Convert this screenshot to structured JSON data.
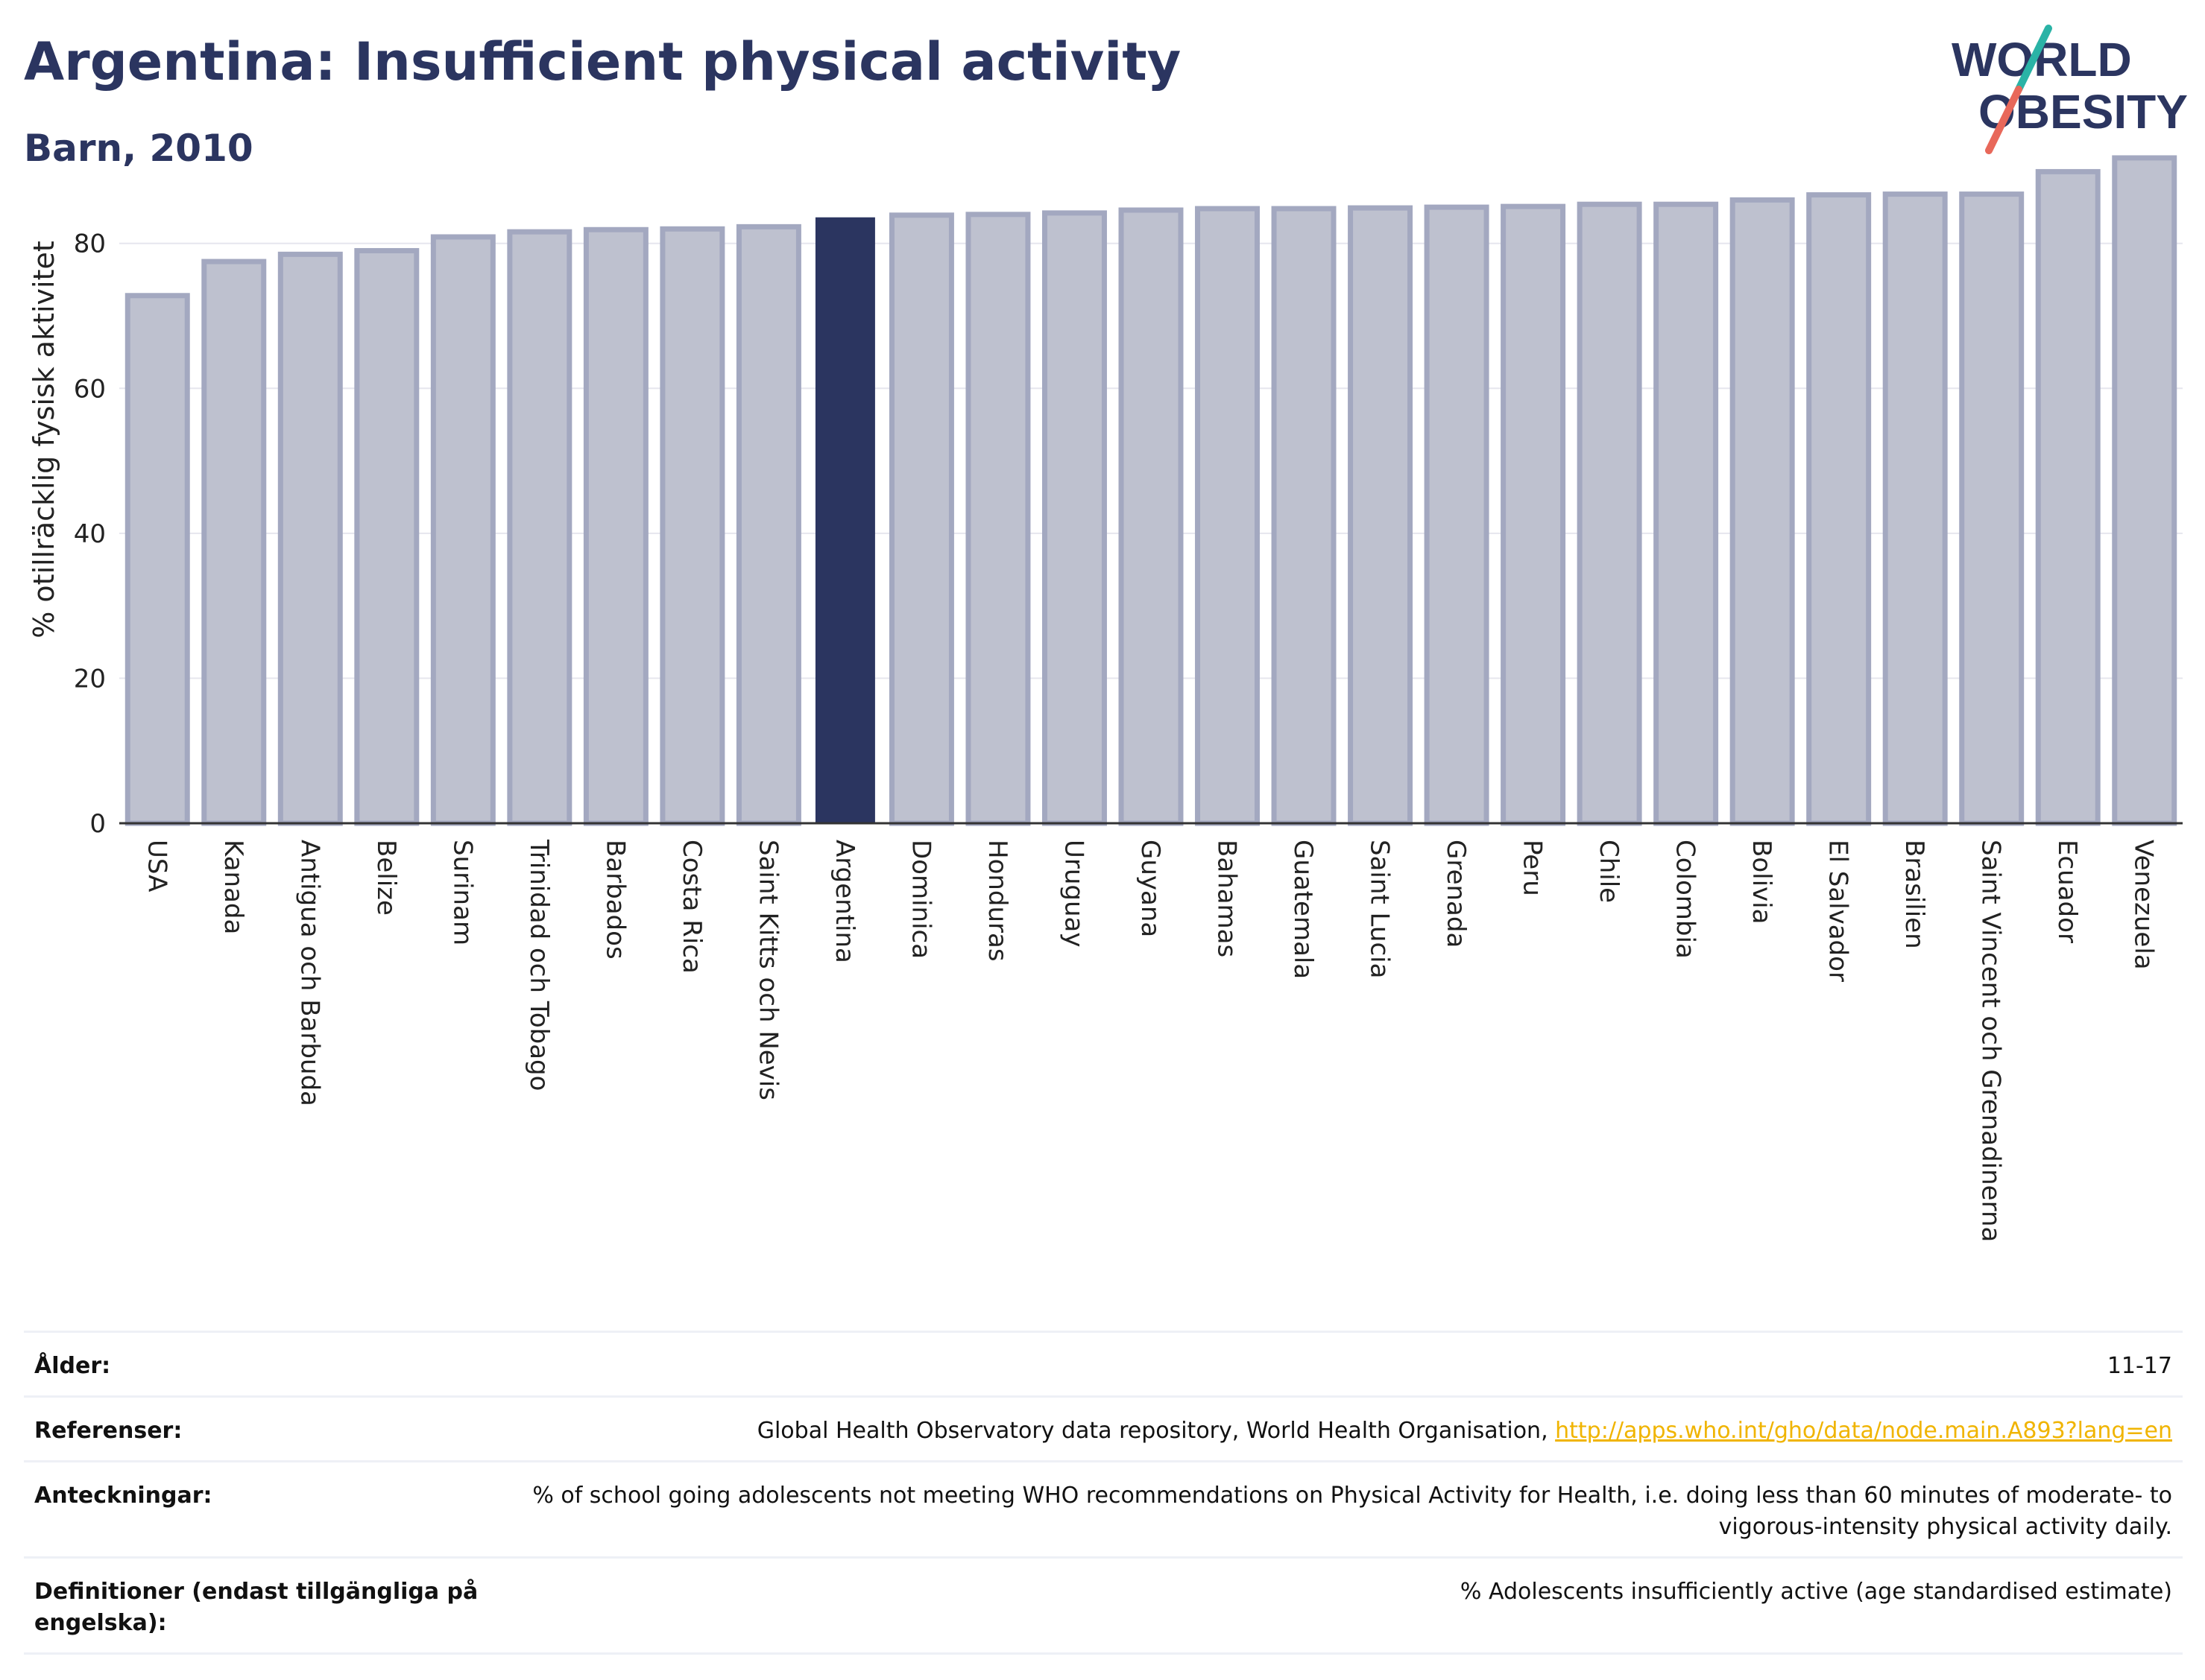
{
  "header": {
    "title": "Argentina: Insufficient physical activity",
    "subtitle": "Barn, 2010"
  },
  "logo": {
    "line1": "WORLD",
    "line2": "OBESITY"
  },
  "colors": {
    "highlight": "#2b3560",
    "bar_fill": "#bec1cf",
    "bar_stroke": "#a3a8c0",
    "grid": "#e6e6ee",
    "logo_teal": "#2ab3a6",
    "logo_coral": "#e8685a"
  },
  "chart_data": {
    "type": "bar",
    "title": "Argentina: Insufficient physical activity",
    "subtitle": "Barn, 2010",
    "xlabel": "",
    "ylabel": "% otillräcklig fysisk aktivitet",
    "ylim": [
      0,
      92
    ],
    "yticks": [
      0,
      20,
      40,
      60,
      80
    ],
    "grid": true,
    "highlight": "Argentina",
    "categories": [
      "USA",
      "Kanada",
      "Antigua och Barbuda",
      "Belize",
      "Surinam",
      "Trinidad och Tobago",
      "Barbados",
      "Costa Rica",
      "Saint Kitts och Nevis",
      "Argentina",
      "Dominica",
      "Honduras",
      "Uruguay",
      "Guyana",
      "Bahamas",
      "Guatemala",
      "Saint Lucia",
      "Grenada",
      "Peru",
      "Chile",
      "Colombia",
      "Bolivia",
      "El Salvador",
      "Brasilien",
      "Saint Vincent och Grenadinerna",
      "Ecuador",
      "Venezuela"
    ],
    "values": [
      72.8,
      77.5,
      78.5,
      79.0,
      80.9,
      81.6,
      81.9,
      82.0,
      82.3,
      83.6,
      83.9,
      84.0,
      84.2,
      84.6,
      84.8,
      84.8,
      84.9,
      85.0,
      85.1,
      85.4,
      85.4,
      86.0,
      86.7,
      86.8,
      86.8,
      89.9,
      91.8
    ]
  },
  "meta": {
    "age_label": "Ålder:",
    "age_value": "11-17",
    "refs_label": "Referenser:",
    "refs_text": "Global Health Observatory data repository, World Health Organisation, ",
    "refs_link": "http://apps.who.int/gho/data/node.main.A893?lang=en",
    "notes_label": "Anteckningar:",
    "notes_text": "% of school going adolescents not meeting WHO recommendations on Physical Activity for Health, i.e. doing less than 60 minutes of moderate- to vigorous-intensity physical activity daily.",
    "defs_label": "Definitioner (endast tillgängliga på engelska):",
    "defs_text": "% Adolescents insufficiently active (age standardised estimate)"
  }
}
